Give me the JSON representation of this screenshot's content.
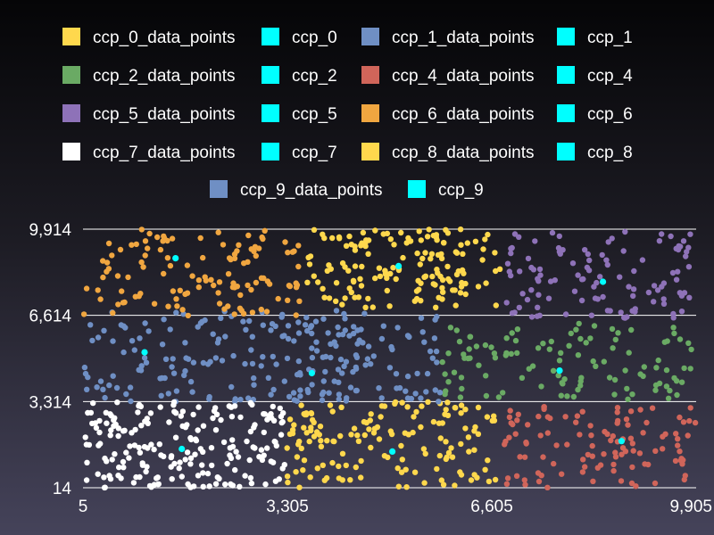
{
  "chart_data": {
    "type": "scatter",
    "title": "",
    "xlabel": "",
    "ylabel": "",
    "xlim": [
      5,
      9905
    ],
    "ylim": [
      14,
      9914
    ],
    "x_ticks": [
      "5",
      "3,305",
      "6,605",
      "9,905"
    ],
    "y_ticks": [
      "9,914",
      "6,614",
      "3,314",
      "14"
    ],
    "grid": "horizontal",
    "legend_position": "top",
    "legend": [
      {
        "label": "ccp_0_data_points",
        "color": "#ffd84d"
      },
      {
        "label": "ccp_0",
        "color": "#00ffff"
      },
      {
        "label": "ccp_1_data_points",
        "color": "#6f8fc4"
      },
      {
        "label": "ccp_1",
        "color": "#00ffff"
      },
      {
        "label": "ccp_2_data_points",
        "color": "#6aaa64"
      },
      {
        "label": "ccp_2",
        "color": "#00ffff"
      },
      {
        "label": "ccp_4_data_points",
        "color": "#d0655a"
      },
      {
        "label": "ccp_4",
        "color": "#00ffff"
      },
      {
        "label": "ccp_5_data_points",
        "color": "#8e72b8"
      },
      {
        "label": "ccp_5",
        "color": "#00ffff"
      },
      {
        "label": "ccp_6_data_points",
        "color": "#f0a640"
      },
      {
        "label": "ccp_6",
        "color": "#00ffff"
      },
      {
        "label": "ccp_7_data_points",
        "color": "#ffffff"
      },
      {
        "label": "ccp_7",
        "color": "#00ffff"
      },
      {
        "label": "ccp_8_data_points",
        "color": "#ffd84d"
      },
      {
        "label": "ccp_8",
        "color": "#00ffff"
      },
      {
        "label": "ccp_9_data_points",
        "color": "#6f8fc4"
      },
      {
        "label": "ccp_9",
        "color": "#00ffff"
      }
    ],
    "series": [
      {
        "name": "ccp_0_data_points",
        "color": "#ffd84d",
        "x_range": [
          3600,
          6750
        ],
        "y_range": [
          6900,
          9914
        ],
        "count": 150,
        "centroid_series": "ccp_0",
        "centroid": [
          5100,
          8500
        ]
      },
      {
        "name": "ccp_1_data_points",
        "color": "#6f8fc4",
        "x_range": [
          5,
          4600
        ],
        "y_range": [
          3300,
          6800
        ],
        "count": 160,
        "centroid_series": "ccp_1",
        "centroid": [
          1000,
          5200
        ]
      },
      {
        "name": "ccp_2_data_points",
        "color": "#6aaa64",
        "x_range": [
          5800,
          9905
        ],
        "y_range": [
          3400,
          6400
        ],
        "count": 110,
        "centroid_series": "ccp_2",
        "centroid": [
          7700,
          4500
        ]
      },
      {
        "name": "ccp_4_data_points",
        "color": "#d0655a",
        "x_range": [
          6800,
          9905
        ],
        "y_range": [
          14,
          3200
        ],
        "count": 110,
        "centroid_series": "ccp_4",
        "centroid": [
          8700,
          1800
        ]
      },
      {
        "name": "ccp_5_data_points",
        "color": "#8e72b8",
        "x_range": [
          6800,
          9905
        ],
        "y_range": [
          6500,
          9914
        ],
        "count": 110,
        "centroid_series": "ccp_5",
        "centroid": [
          8400,
          7900
        ]
      },
      {
        "name": "ccp_6_data_points",
        "color": "#f0a640",
        "x_range": [
          5,
          3500
        ],
        "y_range": [
          6600,
          9914
        ],
        "count": 120,
        "centroid_series": "ccp_6",
        "centroid": [
          1500,
          8800
        ]
      },
      {
        "name": "ccp_7_data_points",
        "color": "#ffffff",
        "x_range": [
          5,
          3300
        ],
        "y_range": [
          14,
          3300
        ],
        "count": 200,
        "centroid_series": "ccp_7",
        "centroid": [
          1600,
          1500
        ]
      },
      {
        "name": "ccp_8_data_points",
        "color": "#ffd84d",
        "x_range": [
          3300,
          6700
        ],
        "y_range": [
          14,
          3300
        ],
        "count": 150,
        "centroid_series": "ccp_8",
        "centroid": [
          5000,
          1400
        ]
      },
      {
        "name": "ccp_9_data_points",
        "color": "#6f8fc4",
        "x_range": [
          3300,
          5800
        ],
        "y_range": [
          3300,
          6600
        ],
        "count": 70,
        "centroid_series": "ccp_9",
        "centroid": [
          3700,
          4400
        ]
      }
    ],
    "centroid_color": "#00ffff"
  }
}
